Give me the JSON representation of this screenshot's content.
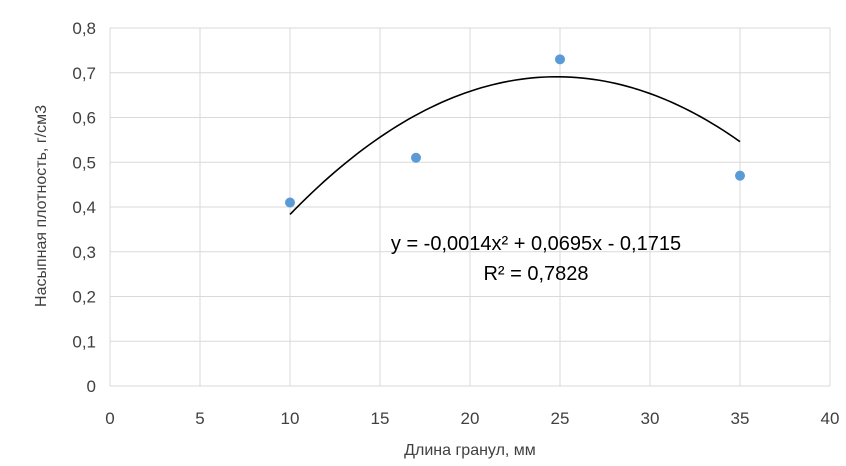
{
  "chart_data": {
    "type": "scatter",
    "x": [
      10,
      17,
      25,
      35
    ],
    "y": [
      0.41,
      0.51,
      0.73,
      0.47
    ],
    "xlabel": "Длина гранул, мм",
    "ylabel": "Насыпная плотность, г/см3",
    "xlim": [
      0,
      40
    ],
    "ylim": [
      0,
      0.8
    ],
    "x_ticks": [
      "0",
      "5",
      "10",
      "15",
      "20",
      "25",
      "30",
      "35",
      "40"
    ],
    "y_ticks": [
      "0",
      "0,1",
      "0,2",
      "0,3",
      "0,4",
      "0,5",
      "0,6",
      "0,7",
      "0,8"
    ],
    "grid": true,
    "point_color": "#5B9BD5",
    "trendline": {
      "type": "polynomial",
      "degree": 2,
      "coefficients": [
        -0.0014,
        0.0695,
        -0.1715
      ],
      "x_range": [
        10,
        35
      ],
      "color": "#000000",
      "equation_label": "y = -0,0014x² + 0,0695x - 0,1715",
      "r_squared_label": "R² = 0,7828"
    }
  }
}
